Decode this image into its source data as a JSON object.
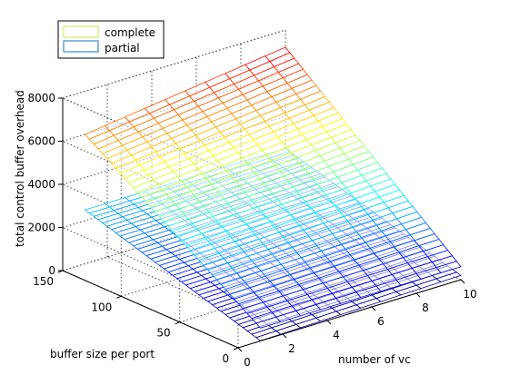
{
  "chart_data": {
    "type": "surface",
    "title": "",
    "xlabel": "number of vc",
    "ylabel": "buffer size per port",
    "zlabel": "total control buffer overhead",
    "xlim": [
      0,
      10
    ],
    "ylim": [
      0,
      150
    ],
    "zlim": [
      0,
      8000
    ],
    "xticks": [
      0,
      2,
      4,
      6,
      8,
      10
    ],
    "yticks": [
      0,
      50,
      100,
      150
    ],
    "zticks": [
      0,
      2000,
      4000,
      6000,
      8000
    ],
    "x": [
      1,
      10
    ],
    "y": [
      0,
      150
    ],
    "series": [
      {
        "name": "complete",
        "z_at": {
          "y0": [
            600,
            600
          ],
          "y150": [
            6000,
            7200
          ]
        }
      },
      {
        "name": "partial",
        "z_at": {
          "y0": [
            10,
            200
          ],
          "y150": [
            2500,
            2500
          ]
        }
      }
    ],
    "grid": true,
    "box": true,
    "legend": {
      "position": "top-left",
      "entries": [
        "complete",
        "partial"
      ]
    },
    "colormap": "jet"
  }
}
